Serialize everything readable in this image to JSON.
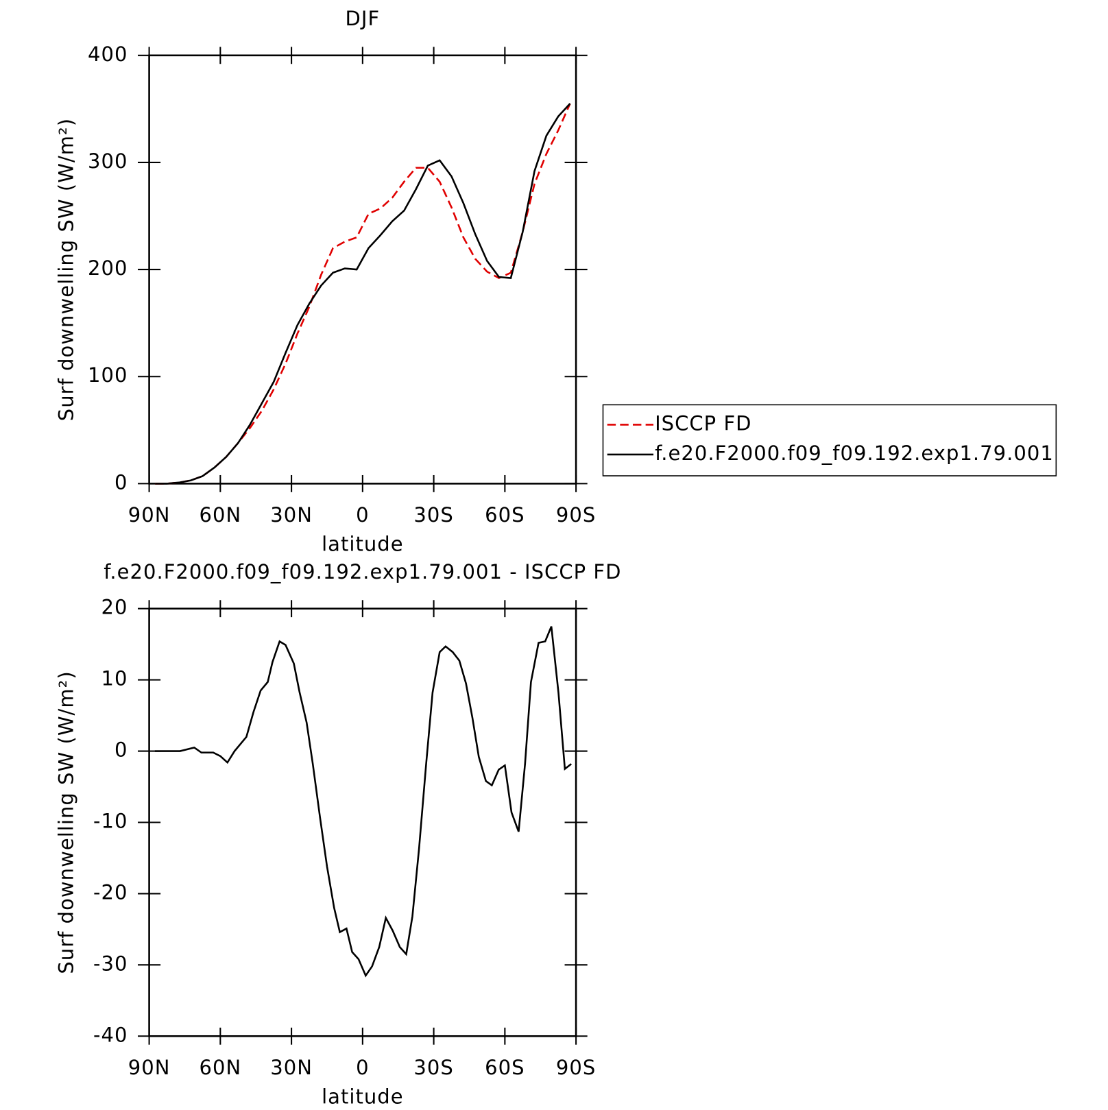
{
  "chart_data": [
    {
      "type": "line",
      "title": "DJF",
      "xlabel": "latitude",
      "ylabel": "Surf downwelling SW (W/m²)",
      "x": [
        87.5,
        82.5,
        77.5,
        72.5,
        67.5,
        62.5,
        57.5,
        52.5,
        47.5,
        42.5,
        37.5,
        32.5,
        27.5,
        22.5,
        17.5,
        12.5,
        7.5,
        2.5,
        -2.5,
        -7.5,
        -12.5,
        -17.5,
        -22.5,
        -27.5,
        -32.5,
        -37.5,
        -42.5,
        -47.5,
        -52.5,
        -57.5,
        -62.5,
        -67.5,
        -72.5,
        -77.5,
        -82.5,
        -87.5
      ],
      "series": [
        {
          "name": "ISCCP FD",
          "color": "#e00000",
          "dash": "dashed",
          "values": [
            0,
            0,
            1,
            3,
            7,
            15,
            25,
            38,
            52,
            68,
            88,
            112,
            140,
            165,
            195,
            220,
            226,
            230,
            252,
            257,
            267,
            282,
            295,
            295,
            282,
            258,
            230,
            210,
            198,
            192,
            197,
            235,
            280,
            308,
            330,
            355
          ]
        },
        {
          "name": "f.e20.F2000.f09_f09.192.exp1.79.001",
          "color": "#000000",
          "dash": "solid",
          "values": [
            0,
            0,
            1,
            3,
            7,
            15,
            25,
            38,
            55,
            75,
            95,
            122,
            148,
            168,
            185,
            197,
            201,
            200,
            220,
            232,
            245,
            255,
            275,
            297,
            302,
            287,
            262,
            233,
            208,
            193,
            192,
            235,
            292,
            325,
            343,
            355
          ]
        }
      ],
      "xlim": [
        90,
        -90
      ],
      "xticks": [
        {
          "value": 90,
          "label": "90N"
        },
        {
          "value": 60,
          "label": "60N"
        },
        {
          "value": 30,
          "label": "30N"
        },
        0,
        {
          "value": -30,
          "label": "30S"
        },
        {
          "value": -60,
          "label": "60S"
        },
        {
          "value": -90,
          "label": "90S"
        }
      ],
      "ylim": [
        0,
        400
      ],
      "yticks": [
        0,
        100,
        200,
        300,
        400
      ],
      "legend": "outside right"
    },
    {
      "type": "line",
      "title": "f.e20.F2000.f09_f09.192.exp1.79.001 - ISCCP FD",
      "xlabel": "latitude",
      "ylabel": "Surf downwelling SW (W/m²)",
      "x": [
        87.6,
        82,
        77,
        71,
        68,
        63,
        60,
        57,
        54,
        49,
        46,
        43,
        40,
        38,
        35,
        32.5,
        29,
        26.6,
        23.6,
        21,
        18,
        15,
        12,
        9.6,
        6.8,
        4.4,
        1.7,
        -1.3,
        -4,
        -7,
        -9.8,
        -12.7,
        -15.7,
        -18.4,
        -21,
        -23.8,
        -26.8,
        -29.5,
        -32.5,
        -35,
        -38,
        -40.8,
        -43.6,
        -46.3,
        -49,
        -52,
        -54.5,
        -57.4,
        -60,
        -62.8,
        -65.8,
        -68.5,
        -71,
        -74.2,
        -77,
        -79.6,
        -82.6,
        -85.3,
        -88
      ],
      "values": [
        0,
        0,
        0,
        0.5,
        -0.2,
        -0.2,
        -0.7,
        -1.6,
        0,
        2,
        5.5,
        8.5,
        9.7,
        12.5,
        15.4,
        14.9,
        12.3,
        8.3,
        4,
        -1.8,
        -9.2,
        -16.2,
        -22,
        -25.4,
        -24.9,
        -28.2,
        -29.2,
        -31.5,
        -30.2,
        -27.5,
        -23.4,
        -25.2,
        -27.5,
        -28.5,
        -23.2,
        -13.7,
        -1.8,
        8.2,
        13.9,
        14.7,
        13.9,
        12.7,
        9.5,
        4.7,
        -0.8,
        -4.2,
        -4.8,
        -2.6,
        -2,
        -8.6,
        -11.3,
        -1.8,
        9.7,
        15.2,
        15.4,
        17.5,
        8.2,
        -2.5,
        -1.8
      ],
      "color": "#000000",
      "xlim": [
        90,
        -90
      ],
      "xticks": [
        {
          "value": 90,
          "label": "90N"
        },
        {
          "value": 60,
          "label": "60N"
        },
        {
          "value": 30,
          "label": "30N"
        },
        0,
        {
          "value": -30,
          "label": "30S"
        },
        {
          "value": -60,
          "label": "60S"
        },
        {
          "value": -90,
          "label": "90S"
        }
      ],
      "ylim": [
        -40,
        20
      ],
      "yticks": [
        -40,
        -30,
        -20,
        -10,
        0,
        10,
        20
      ]
    }
  ]
}
